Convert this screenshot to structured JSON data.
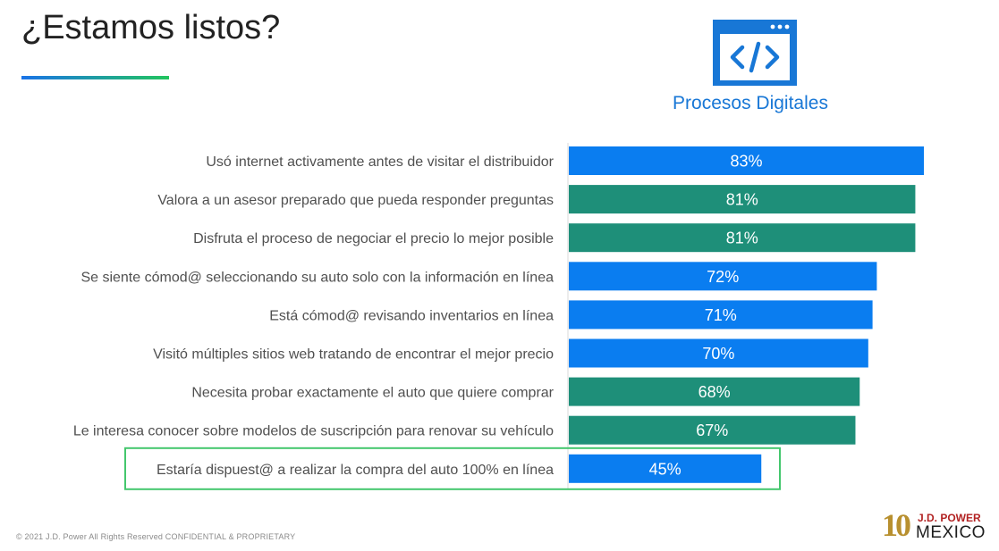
{
  "header": {
    "title": "¿Estamos listos?",
    "section_label": "Procesos Digitales",
    "section_icon": "code-window-icon"
  },
  "colors": {
    "blue": "#0a7df0",
    "green": "#1e8f79",
    "highlight_border": "#44c76d",
    "icon": "#1877d6"
  },
  "chart_data": {
    "type": "bar",
    "orientation": "horizontal",
    "categories": [
      "Usó internet activamente antes de visitar el distribuidor",
      "Valora a un asesor preparado que pueda responder preguntas",
      "Disfruta el proceso de negociar el precio lo mejor posible",
      "Se siente cómod@ seleccionando su auto solo con la información en línea",
      "Está cómod@ revisando inventarios en línea",
      "Visitó múltiples sitios web tratando de encontrar el mejor precio",
      "Necesita probar exactamente el auto que quiere comprar",
      "Le interesa conocer sobre modelos de suscripción para renovar su vehículo",
      "Estaría dispuest@ a realizar la compra del auto 100% en línea"
    ],
    "values": [
      83,
      81,
      81,
      72,
      71,
      70,
      68,
      67,
      45
    ],
    "value_labels": [
      "83%",
      "81%",
      "81%",
      "72%",
      "71%",
      "70%",
      "68%",
      "67%",
      "45%"
    ],
    "bar_colors": [
      "blue",
      "green",
      "green",
      "blue",
      "blue",
      "blue",
      "green",
      "green",
      "blue"
    ],
    "highlighted_index": 8,
    "xlim": [
      0,
      83
    ],
    "grid": false
  },
  "footer": {
    "copyright": "© 2021 J.D. Power  All Rights Reserved  CONFIDENTIAL & PROPRIETARY"
  },
  "logo": {
    "number": "10",
    "brand": "J.D. POWER",
    "country": "MEXICO"
  }
}
